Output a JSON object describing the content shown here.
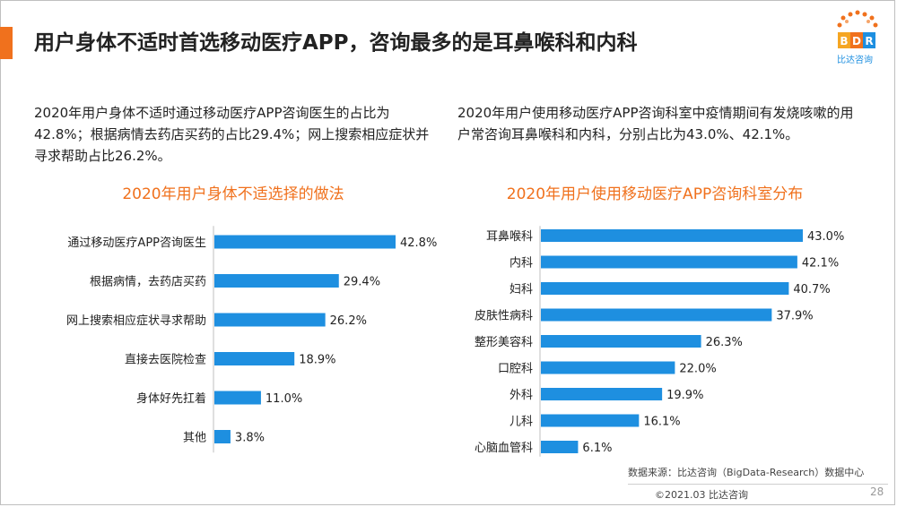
{
  "header": {
    "title": "用户身体不适时首选移动医疗APP，咨询最多的是耳鼻喉科和内科",
    "logo_text": "BDR",
    "logo_caption": "比达咨询"
  },
  "paragraphs": {
    "left": "2020年用户身体不适时通过移动医疗APP咨询医生的占比为42.8%；根据病情去药店买药的占比29.4%；网上搜索相应症状并寻求帮助占比26.2%。",
    "right": "2020年用户使用移动医疗APP咨询科室中疫情期间有发烧咳嗽的用户常咨询耳鼻喉科和内科，分别占比为43.0%、42.1%。"
  },
  "footer": {
    "source": "数据来源：比达咨询（BigData-Research）数据中心",
    "copyright": "©2021.03 比达咨询",
    "page": "28"
  },
  "colors": {
    "bar": "#1e8fe0",
    "accent": "#f0711d"
  },
  "chart_data": [
    {
      "type": "bar",
      "orientation": "horizontal",
      "title": "2020年用户身体不适选择的做法",
      "categories": [
        "通过移动医疗APP咨询医生",
        "根据病情，去药店买药",
        "网上搜索相应症状寻求帮助",
        "直接去医院检查",
        "身体好先扛着",
        "其他"
      ],
      "values": [
        42.8,
        29.4,
        26.2,
        18.9,
        11.0,
        3.8
      ],
      "labels": [
        "42.8%",
        "29.4%",
        "26.2%",
        "18.9%",
        "11.0%",
        "3.8%"
      ],
      "xlim": [
        0,
        42.8
      ],
      "grid": false
    },
    {
      "type": "bar",
      "orientation": "horizontal",
      "title": "2020年用户使用移动医疗APP咨询科室分布",
      "categories": [
        "耳鼻喉科",
        "内科",
        "妇科",
        "皮肤性病科",
        "整形美容科",
        "口腔科",
        "外科",
        "儿科",
        "心脑血管科"
      ],
      "values": [
        43.0,
        42.1,
        40.7,
        37.9,
        26.3,
        22.0,
        19.9,
        16.1,
        6.1
      ],
      "labels": [
        "43.0%",
        "42.1%",
        "40.7%",
        "37.9%",
        "26.3%",
        "22.0%",
        "19.9%",
        "16.1%",
        "6.1%"
      ],
      "xlim": [
        0,
        43.0
      ],
      "grid": false
    }
  ]
}
